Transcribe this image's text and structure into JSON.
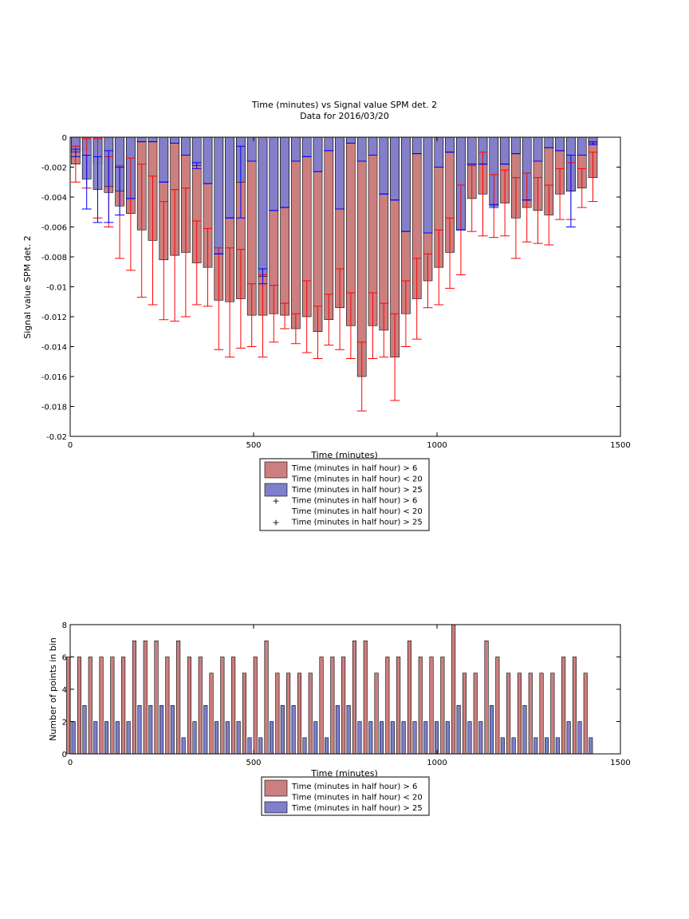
{
  "chart_data": [
    {
      "type": "bar",
      "title": "Time (minutes) vs Signal value SPM det. 2",
      "subtitle": "Data for 2016/03/20",
      "xlabel": "Time (minutes)",
      "ylabel": "Signal value SPM det. 2",
      "xlim": [
        0,
        1500
      ],
      "ylim": [
        -0.02,
        0
      ],
      "xticks": [
        "0",
        "500",
        "1000",
        "1500"
      ],
      "yticks": [
        "0",
        "-0.002",
        "-0.004",
        "-0.006",
        "-0.008",
        "-0.01",
        "-0.012",
        "-0.014",
        "-0.016",
        "-0.018",
        "-0.02"
      ],
      "grid": false,
      "legend_position": "below",
      "legend": {
        "rows": [
          {
            "kind": "patch",
            "color": "#cc7f7f",
            "label": "Time (minutes in half hour) > 6"
          },
          {
            "kind": "text",
            "label": "Time (minutes in half hour) < 20"
          },
          {
            "kind": "patch",
            "color": "#7f7fcc",
            "label": "Time (minutes in half hour) > 25"
          },
          {
            "kind": "marker",
            "color": "#ff0000",
            "label": "Time (minutes in half hour) > 6"
          },
          {
            "kind": "text",
            "label": "Time (minutes in half hour) < 20"
          },
          {
            "kind": "marker",
            "color": "#0000ff",
            "label": "Time (minutes in half hour) > 25"
          }
        ]
      },
      "x": [
        15,
        45,
        75,
        105,
        135,
        165,
        195,
        225,
        255,
        285,
        315,
        345,
        375,
        405,
        435,
        465,
        495,
        525,
        555,
        585,
        615,
        645,
        675,
        705,
        735,
        765,
        795,
        825,
        855,
        885,
        915,
        945,
        975,
        1005,
        1035,
        1065,
        1095,
        1125,
        1155,
        1185,
        1215,
        1245,
        1275,
        1305,
        1335,
        1365,
        1395,
        1425
      ],
      "series": [
        {
          "color": "#cc7f7f",
          "error_color": "#ff0000",
          "values": [
            -0.0018,
            -0.0009,
            -0.0018,
            -0.0037,
            -0.0046,
            -0.0051,
            -0.0062,
            -0.0069,
            -0.0082,
            -0.0079,
            -0.0077,
            -0.0084,
            -0.0087,
            -0.0109,
            -0.011,
            -0.0108,
            -0.0119,
            -0.0119,
            -0.0118,
            -0.0119,
            -0.0128,
            -0.012,
            -0.013,
            -0.0122,
            -0.0114,
            -0.0126,
            -0.016,
            -0.0126,
            -0.0129,
            -0.0147,
            -0.0118,
            -0.0108,
            -0.0096,
            -0.0087,
            -0.0077,
            -0.0062,
            -0.0041,
            -0.0038,
            -0.0046,
            -0.0044,
            -0.0054,
            -0.0047,
            -0.0049,
            -0.0052,
            -0.0038,
            -0.0036,
            -0.0034,
            -0.0027
          ],
          "lower": [
            -0.003,
            -0.0034,
            -0.0054,
            -0.006,
            -0.0081,
            -0.0089,
            -0.0107,
            -0.0112,
            -0.0122,
            -0.0123,
            -0.012,
            -0.0112,
            -0.0113,
            -0.0142,
            -0.0147,
            -0.0141,
            -0.014,
            -0.0147,
            -0.0137,
            -0.0128,
            -0.0138,
            -0.0144,
            -0.0148,
            -0.0139,
            -0.0142,
            -0.0148,
            -0.0183,
            -0.0148,
            -0.0147,
            -0.0176,
            -0.014,
            -0.0135,
            -0.0114,
            -0.0112,
            -0.0101,
            -0.0092,
            -0.0063,
            -0.0066,
            -0.0067,
            -0.0066,
            -0.0081,
            -0.007,
            -0.0071,
            -0.0072,
            -0.0055,
            -0.0055,
            -0.0047,
            -0.0043
          ],
          "upper": [
            -0.0006,
            -0.0001,
            -0.0001,
            -0.0013,
            -0.0019,
            -0.0014,
            -0.0018,
            -0.0026,
            -0.0043,
            -0.0035,
            -0.0034,
            -0.0056,
            -0.0061,
            -0.0074,
            -0.0074,
            -0.0075,
            -0.0098,
            -0.0092,
            -0.0099,
            -0.0111,
            -0.0118,
            -0.0096,
            -0.0113,
            -0.0105,
            -0.0088,
            -0.0104,
            -0.0137,
            -0.0104,
            -0.0111,
            -0.0118,
            -0.0096,
            -0.0081,
            -0.0078,
            -0.0062,
            -0.0054,
            -0.0032,
            -0.0019,
            -0.001,
            -0.0025,
            -0.0022,
            -0.0027,
            -0.0024,
            -0.0027,
            -0.0032,
            -0.0021,
            -0.0017,
            -0.0021,
            -0.001
          ]
        },
        {
          "color": "#7f7fcc",
          "error_color": "#0000ff",
          "values": [
            -0.001,
            -0.0028,
            -0.0035,
            -0.0033,
            -0.0036,
            -0.0041,
            -0.0003,
            -0.0003,
            -0.003,
            -0.0004,
            -0.0012,
            -0.0019,
            -0.0031,
            -0.0078,
            -0.0054,
            -0.003,
            -0.0016,
            -0.0093,
            -0.0049,
            -0.0047,
            -0.0016,
            -0.0013,
            -0.0023,
            -0.0009,
            -0.0048,
            -0.0004,
            -0.0016,
            -0.0012,
            -0.0038,
            -0.0042,
            -0.0063,
            -0.0011,
            -0.0064,
            -0.002,
            -0.001,
            -0.0062,
            -0.0018,
            -0.0018,
            -0.0046,
            -0.0018,
            -0.0011,
            -0.0042,
            -0.0016,
            -0.0007,
            -0.0009,
            -0.0036,
            -0.0012,
            -0.0004
          ],
          "lower": [
            -0.0013,
            -0.0048,
            -0.0057,
            -0.0057,
            -0.0052,
            -0.0041,
            -0.0003,
            -0.0003,
            -0.003,
            -0.0004,
            -0.0012,
            -0.0021,
            -0.0031,
            -0.0078,
            -0.0054,
            -0.0054,
            -0.0016,
            -0.0098,
            -0.0049,
            -0.0047,
            -0.0016,
            -0.0013,
            -0.0023,
            -0.0009,
            -0.0048,
            -0.0004,
            -0.0016,
            -0.0012,
            -0.0038,
            -0.0042,
            -0.0063,
            -0.0011,
            -0.0064,
            -0.002,
            -0.001,
            -0.0062,
            -0.0018,
            -0.0018,
            -0.0047,
            -0.0018,
            -0.0011,
            -0.0042,
            -0.0016,
            -0.0007,
            -0.0009,
            -0.006,
            -0.0012,
            -0.0005
          ],
          "upper": [
            -0.0008,
            -0.0012,
            -0.0013,
            -0.0009,
            -0.002,
            -0.0041,
            -0.0003,
            -0.0003,
            -0.003,
            -0.0004,
            -0.0012,
            -0.0017,
            -0.0031,
            -0.0078,
            -0.0054,
            -0.0006,
            -0.0016,
            -0.0088,
            -0.0049,
            -0.0047,
            -0.0016,
            -0.0013,
            -0.0023,
            -0.0009,
            -0.0048,
            -0.0004,
            -0.0016,
            -0.0012,
            -0.0038,
            -0.0042,
            -0.0063,
            -0.0011,
            -0.0064,
            -0.002,
            -0.001,
            -0.0062,
            -0.0018,
            -0.0018,
            -0.0045,
            -0.0018,
            -0.0011,
            -0.0042,
            -0.0016,
            -0.0007,
            -0.0009,
            -0.0012,
            -0.0012,
            -0.0003
          ]
        }
      ]
    },
    {
      "type": "bar",
      "xlabel": "Time (minutes)",
      "ylabel": "Number of points in bin",
      "xlim": [
        0,
        1500
      ],
      "ylim": [
        0,
        8
      ],
      "xticks": [
        "0",
        "500",
        "1000",
        "1500"
      ],
      "yticks": [
        "0",
        "2",
        "4",
        "6",
        "8"
      ],
      "grid": false,
      "legend_position": "below",
      "legend": {
        "rows": [
          {
            "kind": "patch",
            "color": "#cc7f7f",
            "label": "Time (minutes in half hour) > 6"
          },
          {
            "kind": "text",
            "label": "Time (minutes in half hour) < 20"
          },
          {
            "kind": "patch",
            "color": "#7f7fcc",
            "label": "Time (minutes in half hour) > 25"
          }
        ]
      },
      "x": [
        15,
        45,
        75,
        105,
        135,
        165,
        195,
        225,
        255,
        285,
        315,
        345,
        375,
        405,
        435,
        465,
        495,
        525,
        555,
        585,
        615,
        645,
        675,
        705,
        735,
        765,
        795,
        825,
        855,
        885,
        915,
        945,
        975,
        1005,
        1035,
        1065,
        1095,
        1125,
        1155,
        1185,
        1215,
        1245,
        1275,
        1305,
        1335,
        1365,
        1395,
        1425
      ],
      "series": [
        {
          "color": "#cc7f7f",
          "values": [
            6,
            6,
            6,
            6,
            6,
            6,
            7,
            7,
            7,
            6,
            7,
            6,
            6,
            5,
            6,
            6,
            5,
            6,
            7,
            5,
            5,
            5,
            5,
            6,
            6,
            6,
            7,
            7,
            5,
            6,
            6,
            7,
            6,
            6,
            6,
            8,
            5,
            5,
            7,
            6,
            5,
            5,
            5,
            5,
            5,
            6,
            6,
            5
          ]
        },
        {
          "color": "#7f7fcc",
          "values": [
            2,
            3,
            2,
            2,
            2,
            2,
            3,
            3,
            3,
            3,
            1,
            2,
            3,
            2,
            2,
            2,
            1,
            1,
            2,
            3,
            3,
            1,
            2,
            1,
            3,
            3,
            2,
            2,
            2,
            2,
            2,
            2,
            2,
            2,
            2,
            3,
            2,
            2,
            3,
            1,
            1,
            3,
            1,
            1,
            1,
            2,
            2,
            1
          ]
        }
      ]
    }
  ]
}
